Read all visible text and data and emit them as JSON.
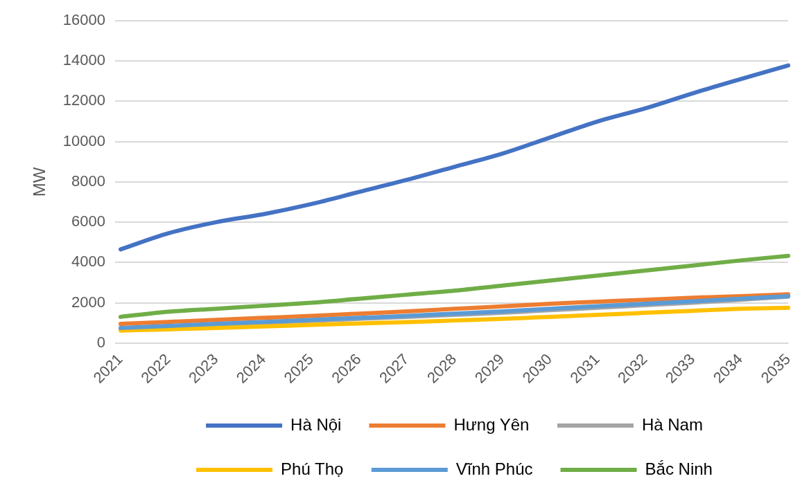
{
  "chart_data": {
    "type": "line",
    "ylabel": "MW",
    "categories": [
      "2021",
      "2022",
      "2023",
      "2024",
      "2025",
      "2026",
      "2027",
      "2028",
      "2029",
      "2030",
      "2031",
      "2032",
      "2033",
      "2034",
      "2035"
    ],
    "series": [
      {
        "name": "Hà Nội",
        "color": "#4472c4",
        "values": [
          4650,
          5450,
          6000,
          6400,
          6900,
          7500,
          8100,
          8750,
          9400,
          10200,
          11000,
          11650,
          12400,
          13100,
          13780
        ]
      },
      {
        "name": "Hưng Yên",
        "color": "#ed7d31",
        "values": [
          950,
          1050,
          1150,
          1250,
          1350,
          1460,
          1570,
          1700,
          1820,
          1950,
          2050,
          2150,
          2250,
          2330,
          2420
        ]
      },
      {
        "name": "Hà Nam",
        "color": "#a5a5a5",
        "values": [
          700,
          800,
          900,
          1000,
          1100,
          1200,
          1300,
          1400,
          1500,
          1630,
          1750,
          1880,
          2000,
          2150,
          2300
        ]
      },
      {
        "name": "Phú Thọ",
        "color": "#ffc000",
        "values": [
          620,
          680,
          750,
          820,
          900,
          970,
          1040,
          1120,
          1200,
          1300,
          1400,
          1500,
          1600,
          1700,
          1750
        ]
      },
      {
        "name": "Vĩnh Phúc",
        "color": "#5b9bd5",
        "values": [
          750,
          850,
          950,
          1050,
          1150,
          1250,
          1350,
          1460,
          1570,
          1700,
          1830,
          1950,
          2070,
          2200,
          2330
        ]
      },
      {
        "name": "Bắc Ninh",
        "color": "#70ad47",
        "values": [
          1300,
          1550,
          1700,
          1850,
          2000,
          2200,
          2400,
          2600,
          2850,
          3100,
          3350,
          3600,
          3850,
          4100,
          4330
        ]
      }
    ],
    "ylim": [
      0,
      16000
    ],
    "yticks": [
      0,
      2000,
      4000,
      6000,
      8000,
      10000,
      12000,
      14000,
      16000
    ],
    "grid": "y",
    "legend": "bottom",
    "marker": "none",
    "line_style": "solid"
  }
}
